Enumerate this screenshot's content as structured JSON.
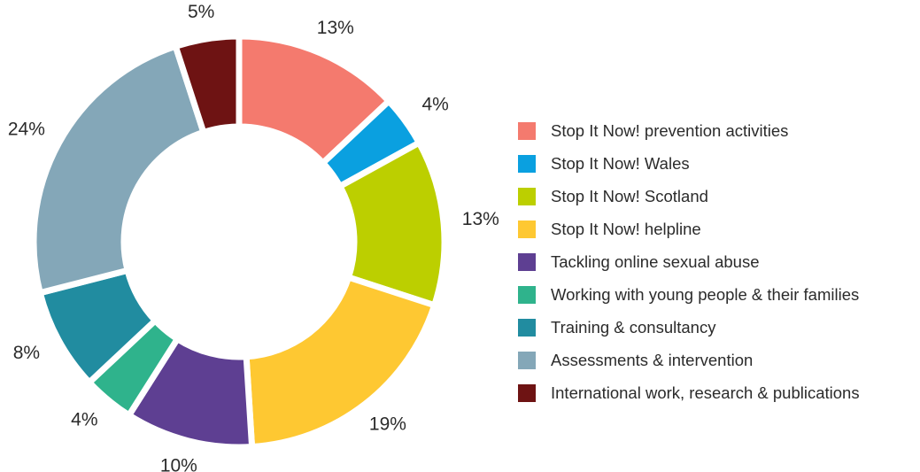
{
  "chart_data": {
    "type": "donut",
    "categories": [
      "Stop It Now! prevention activities",
      "Stop It Now! Wales",
      "Stop It Now! Scotland",
      "Stop It Now! helpline",
      "Tackling online sexual abuse",
      "Working with young people & their families",
      "Training & consultancy",
      "Assessments & intervention",
      "International work, research & publications"
    ],
    "values": [
      13,
      4,
      13,
      19,
      10,
      4,
      8,
      24,
      5
    ],
    "value_labels": [
      "13%",
      "4%",
      "13%",
      "19%",
      "10%",
      "4%",
      "8%",
      "24%",
      "5%"
    ],
    "colors": [
      "#f47a6e",
      "#0aa0e0",
      "#bccf00",
      "#fec832",
      "#5e3f92",
      "#2fb38c",
      "#218ca0",
      "#84a7b8",
      "#6e1313"
    ],
    "legend": "right"
  }
}
